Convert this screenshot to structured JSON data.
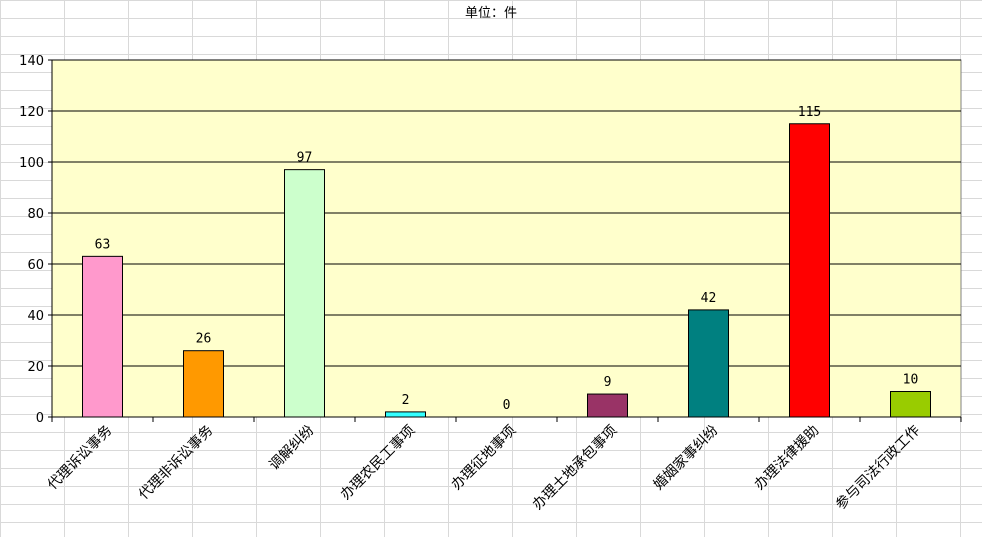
{
  "chart_data": {
    "type": "bar",
    "title": "单位：件",
    "categories": [
      "代理诉讼事务",
      "代理非诉讼事务",
      "调解纠纷",
      "办理农民工事项",
      "办理征地事项",
      "办理土地承包事项",
      "婚姻家事纠纷",
      "办理法律援助",
      "参与司法行政工作"
    ],
    "values": [
      63,
      26,
      97,
      2,
      0,
      9,
      42,
      115,
      10
    ],
    "bar_colors": [
      "#ff99cc",
      "#ff9900",
      "#ccffcc",
      "#33ffff",
      "#808080",
      "#993366",
      "#008080",
      "#ff0000",
      "#99cc00"
    ],
    "plot_background": "#ffffcc",
    "ylim": [
      0,
      140
    ],
    "yticks": [
      0,
      20,
      40,
      60,
      80,
      100,
      120,
      140
    ],
    "grid": true,
    "data_labels": true,
    "legend": "none"
  }
}
